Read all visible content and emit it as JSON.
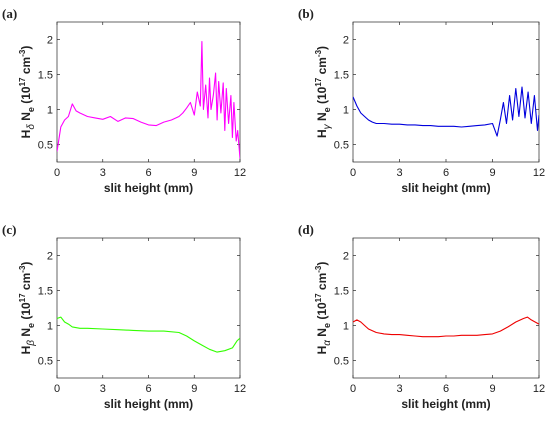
{
  "chart_data": [
    {
      "panel_label": "(a)",
      "type": "line",
      "color": "#ff00ff",
      "xlabel": "slit height (mm)",
      "ylabel": {
        "species": "H",
        "subscript": "δ",
        "quantity": "N",
        "q_sub": "e",
        "unit_open": "(10",
        "exponent": "17",
        "unit_mid": " cm",
        "unit_exp": "-3",
        "unit_close": ")"
      },
      "xlim": [
        0,
        12
      ],
      "ylim": [
        0.25,
        2.25
      ],
      "xticks": [
        "0",
        "3",
        "6",
        "9",
        "12"
      ],
      "yticks": [
        "0.5",
        "1",
        "1.5",
        "2"
      ],
      "x": [
        0,
        0.25,
        0.5,
        0.75,
        1,
        1.25,
        1.5,
        2,
        2.5,
        3,
        3.5,
        4,
        4.5,
        5,
        5.5,
        6,
        6.5,
        7,
        7.5,
        8,
        8.25,
        8.5,
        8.75,
        9,
        9.2,
        9.4,
        9.5,
        9.6,
        9.75,
        9.9,
        10,
        10.1,
        10.25,
        10.4,
        10.5,
        10.6,
        10.75,
        10.9,
        11,
        11.1,
        11.25,
        11.4,
        11.5,
        11.6,
        11.75,
        11.85,
        12
      ],
      "values": [
        0.4,
        0.75,
        0.85,
        0.9,
        1.08,
        0.98,
        0.95,
        0.9,
        0.88,
        0.86,
        0.9,
        0.83,
        0.88,
        0.87,
        0.82,
        0.78,
        0.77,
        0.82,
        0.85,
        0.9,
        0.95,
        1.02,
        1.1,
        0.92,
        1.25,
        1.05,
        1.97,
        1.0,
        1.35,
        0.88,
        1.45,
        1.0,
        1.2,
        1.52,
        0.85,
        1.4,
        0.95,
        1.38,
        0.7,
        1.3,
        0.8,
        1.2,
        0.6,
        1.1,
        0.55,
        0.7,
        0.3
      ]
    },
    {
      "panel_label": "(b)",
      "type": "line",
      "color": "#0000dd",
      "xlabel": "slit height (mm)",
      "ylabel": {
        "species": "H",
        "subscript": "γ",
        "quantity": "N",
        "q_sub": "e",
        "unit_open": "(10",
        "exponent": "17",
        "unit_mid": " cm",
        "unit_exp": "-3",
        "unit_close": ")"
      },
      "xlim": [
        0,
        12
      ],
      "ylim": [
        0.25,
        2.25
      ],
      "xticks": [
        "0",
        "3",
        "6",
        "9",
        "12"
      ],
      "yticks": [
        "0.5",
        "1",
        "1.5",
        "2"
      ],
      "x": [
        0,
        0.25,
        0.5,
        0.75,
        1,
        1.25,
        1.5,
        2,
        2.5,
        3,
        3.5,
        4,
        4.5,
        5,
        5.5,
        6,
        6.5,
        7,
        7.5,
        8,
        8.5,
        9,
        9.3,
        9.5,
        9.7,
        9.9,
        10.1,
        10.3,
        10.5,
        10.7,
        10.9,
        11.1,
        11.3,
        11.5,
        11.7,
        11.9,
        12
      ],
      "values": [
        1.18,
        1.05,
        0.95,
        0.9,
        0.85,
        0.82,
        0.8,
        0.8,
        0.79,
        0.79,
        0.78,
        0.78,
        0.77,
        0.77,
        0.76,
        0.76,
        0.76,
        0.75,
        0.76,
        0.77,
        0.78,
        0.8,
        0.62,
        0.85,
        1.1,
        0.8,
        1.2,
        0.85,
        1.3,
        0.9,
        1.32,
        0.88,
        1.25,
        0.8,
        1.2,
        0.7,
        0.92
      ]
    },
    {
      "panel_label": "(c)",
      "type": "line",
      "color": "#33ff00",
      "xlabel": "slit height (mm)",
      "ylabel": {
        "species": "H",
        "subscript": "β",
        "quantity": "N",
        "q_sub": "e",
        "unit_open": "(10",
        "exponent": "17",
        "unit_mid": " cm",
        "unit_exp": "-3",
        "unit_close": ")"
      },
      "xlim": [
        0,
        12
      ],
      "ylim": [
        0.25,
        2.25
      ],
      "xticks": [
        "0",
        "3",
        "6",
        "9",
        "12"
      ],
      "yticks": [
        "0.5",
        "1",
        "1.5",
        "2"
      ],
      "x": [
        0,
        0.25,
        0.5,
        0.75,
        1,
        1.5,
        2,
        3,
        4,
        5,
        6,
        7,
        8,
        8.5,
        9,
        9.5,
        10,
        10.5,
        11,
        11.5,
        11.8,
        12
      ],
      "values": [
        1.1,
        1.12,
        1.05,
        1.02,
        0.98,
        0.96,
        0.96,
        0.95,
        0.94,
        0.93,
        0.92,
        0.92,
        0.9,
        0.85,
        0.78,
        0.72,
        0.66,
        0.62,
        0.64,
        0.68,
        0.78,
        0.82
      ]
    },
    {
      "panel_label": "(d)",
      "type": "line",
      "color": "#ee0000",
      "xlabel": "slit height (mm)",
      "ylabel": {
        "species": "H",
        "subscript": "α",
        "quantity": "N",
        "q_sub": "e",
        "unit_open": "(10",
        "exponent": "17",
        "unit_mid": " cm",
        "unit_exp": "-3",
        "unit_close": ")"
      },
      "xlim": [
        0,
        12
      ],
      "ylim": [
        0.25,
        2.25
      ],
      "xticks": [
        "0",
        "3",
        "6",
        "9",
        "12"
      ],
      "yticks": [
        "0.5",
        "1",
        "1.5",
        "2"
      ],
      "x": [
        0,
        0.25,
        0.5,
        0.75,
        1,
        1.5,
        2,
        2.5,
        3,
        3.5,
        4,
        4.5,
        5,
        5.5,
        6,
        6.5,
        7,
        7.5,
        8,
        8.5,
        9,
        9.5,
        10,
        10.5,
        11,
        11.25,
        11.5,
        11.75,
        12
      ],
      "values": [
        1.05,
        1.08,
        1.05,
        1.0,
        0.95,
        0.9,
        0.88,
        0.87,
        0.87,
        0.86,
        0.85,
        0.84,
        0.84,
        0.84,
        0.85,
        0.85,
        0.86,
        0.86,
        0.86,
        0.87,
        0.88,
        0.92,
        0.98,
        1.05,
        1.1,
        1.12,
        1.08,
        1.05,
        1.02
      ]
    }
  ]
}
